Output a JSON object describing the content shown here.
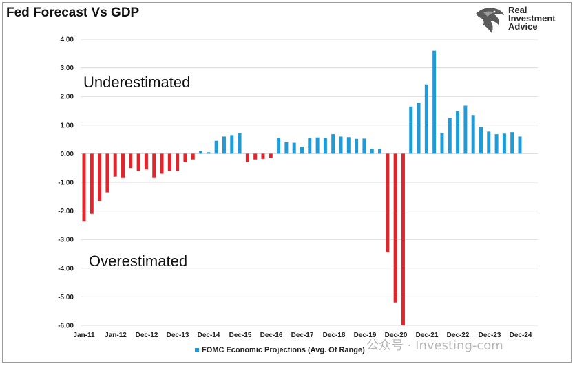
{
  "chart_data": {
    "type": "bar",
    "title": "Fed Forecast Vs GDP",
    "ylim": [
      -6,
      4
    ],
    "yticks": [
      "4.00",
      "3.00",
      "2.00",
      "1.00",
      "0.00",
      "-1.00",
      "-2.00",
      "-3.00",
      "-4.00",
      "-5.00",
      "-6.00"
    ],
    "ytick_values": [
      4,
      3,
      2,
      1,
      0,
      -1,
      -2,
      -3,
      -4,
      -5,
      -6
    ],
    "x_tick_labels": [
      "Jan-11",
      "Jan-12",
      "Dec-12",
      "Dec-13",
      "Dec-14",
      "Dec-15",
      "Dec-16",
      "Dec-17",
      "Dec-18",
      "Dec-19",
      "Dec-20",
      "Dec-21",
      "Dec-22",
      "Dec-23",
      "Dec-24"
    ],
    "legend_position": "bottom",
    "grid": true,
    "series": [
      {
        "name": "FOMC Economic Projections (Avg. Of Range)",
        "positive_color": "#1f9bd7",
        "negative_color": "#e0262c",
        "values": [
          -2.35,
          -2.1,
          -1.65,
          -1.35,
          -0.8,
          -0.85,
          -0.5,
          -0.6,
          -0.55,
          -0.85,
          -0.7,
          -0.6,
          -0.6,
          -0.3,
          -0.2,
          0.1,
          0.05,
          0.45,
          0.6,
          0.65,
          0.72,
          -0.3,
          -0.2,
          -0.18,
          -0.15,
          0.55,
          0.4,
          0.38,
          0.25,
          0.55,
          0.57,
          0.55,
          0.68,
          0.6,
          0.58,
          0.52,
          0.53,
          0.17,
          0.17,
          -3.45,
          -5.2,
          -6.0,
          1.65,
          1.78,
          2.42,
          3.6,
          0.73,
          1.25,
          1.5,
          1.68,
          1.35,
          0.93,
          0.77,
          0.68,
          0.7,
          0.75,
          0.6
        ]
      }
    ],
    "annotations": [
      "Underestimated",
      "Overestimated"
    ]
  },
  "logo": {
    "lines": [
      "Real",
      "Investment",
      "Advice"
    ]
  },
  "watermark": "公众号 · Investing-com"
}
